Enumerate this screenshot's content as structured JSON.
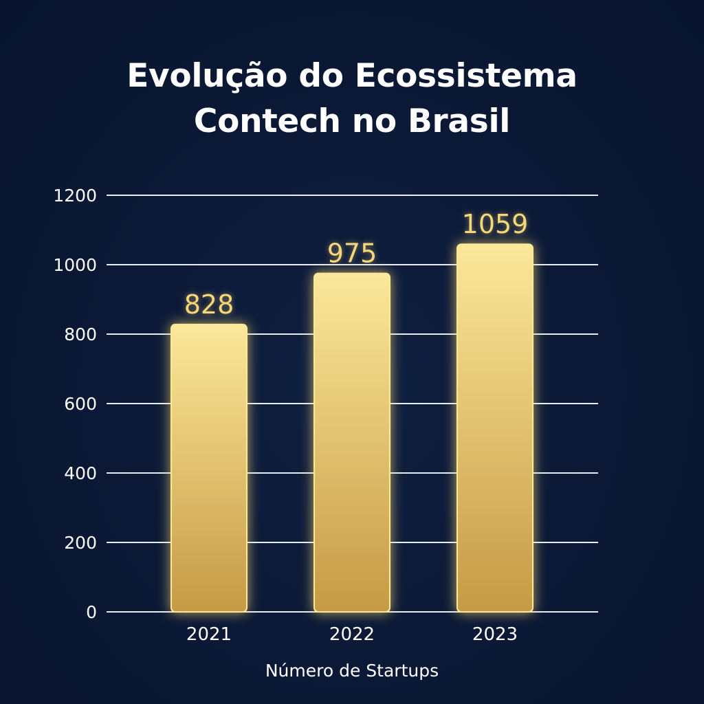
{
  "chart_data": {
    "type": "bar",
    "title_lines": [
      "Evolução do Ecossistema",
      "Contech no Brasil"
    ],
    "categories": [
      "2021",
      "2022",
      "2023"
    ],
    "values": [
      828,
      975,
      1059
    ],
    "value_labels": [
      "828",
      "975",
      "1059"
    ],
    "xlabel": "Número de Startups",
    "ylabel": "",
    "ylim": [
      0,
      1200
    ],
    "yticks": [
      0,
      200,
      400,
      600,
      800,
      1000,
      1200
    ],
    "grid": true,
    "colors": {
      "background": "#0b1834",
      "bar_top": "#fbe89a",
      "bar_bottom": "#c69a45",
      "bar_glow": "#f5d36a",
      "value_label": "#f3d77a",
      "text": "#ffffff",
      "grid": "#e9edf5"
    }
  }
}
